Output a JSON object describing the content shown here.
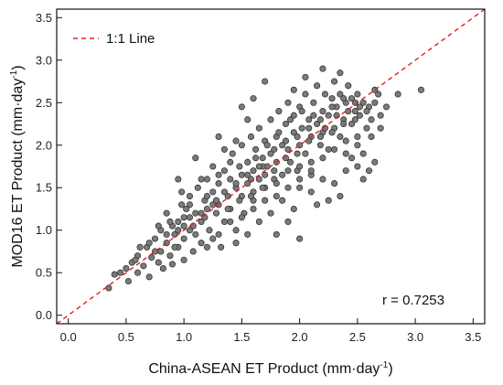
{
  "chart_data": {
    "type": "scatter",
    "xlabel": "China-ASEAN ET Product (mm·day",
    "xlabel_sup": "-1",
    "xlabel_end": ")",
    "ylabel": "MOD16 ET Product (mm·day",
    "ylabel_sup": "-1",
    "ylabel_end": ")",
    "xlim": [
      -0.1,
      3.6
    ],
    "ylim": [
      -0.1,
      3.6
    ],
    "xticks": [
      "0.0",
      "0.5",
      "1.0",
      "1.5",
      "2.0",
      "2.5",
      "3.0",
      "3.5"
    ],
    "yticks": [
      "0.0",
      "0.5",
      "1.0",
      "1.5",
      "2.0",
      "2.5",
      "3.0",
      "3.5"
    ],
    "xtick_values": [
      0,
      0.5,
      1,
      1.5,
      2,
      2.5,
      3,
      3.5
    ],
    "ytick_values": [
      0,
      0.5,
      1,
      1.5,
      2,
      2.5,
      3,
      3.5
    ],
    "legend": {
      "label": "1:1 Line",
      "placement": "top-left"
    },
    "reference_line": {
      "name": "1:1 Line",
      "color": "#e0201b",
      "style": "dashed"
    },
    "annotation": "r = 0.7253",
    "correlation_r": 0.7253,
    "point_color": "#7a7a7a",
    "point_edge": "#2a2a2a",
    "points": [
      [
        0.35,
        0.32
      ],
      [
        0.4,
        0.48
      ],
      [
        0.45,
        0.5
      ],
      [
        0.5,
        0.55
      ],
      [
        0.52,
        0.4
      ],
      [
        0.55,
        0.62
      ],
      [
        0.6,
        0.7
      ],
      [
        0.6,
        0.5
      ],
      [
        0.65,
        0.58
      ],
      [
        0.68,
        0.8
      ],
      [
        0.7,
        0.45
      ],
      [
        0.72,
        0.68
      ],
      [
        0.75,
        0.9
      ],
      [
        0.78,
        0.62
      ],
      [
        0.8,
        1.0
      ],
      [
        0.8,
        0.75
      ],
      [
        0.82,
        0.55
      ],
      [
        0.85,
        0.85
      ],
      [
        0.85,
        1.2
      ],
      [
        0.88,
        0.7
      ],
      [
        0.9,
        1.05
      ],
      [
        0.9,
        0.6
      ],
      [
        0.92,
        0.95
      ],
      [
        0.95,
        1.1
      ],
      [
        0.95,
        0.8
      ],
      [
        0.98,
        1.3
      ],
      [
        1.0,
        0.9
      ],
      [
        1.0,
        1.15
      ],
      [
        1.0,
        0.65
      ],
      [
        1.02,
        1.25
      ],
      [
        1.05,
        1.0
      ],
      [
        1.05,
        1.4
      ],
      [
        1.08,
        0.75
      ],
      [
        1.1,
        1.2
      ],
      [
        1.1,
        0.95
      ],
      [
        1.12,
        1.5
      ],
      [
        1.15,
        1.1
      ],
      [
        1.15,
        0.85
      ],
      [
        1.18,
        1.35
      ],
      [
        1.2,
        1.25
      ],
      [
        1.2,
        1.6
      ],
      [
        1.22,
        1.0
      ],
      [
        1.25,
        1.45
      ],
      [
        1.25,
        0.9
      ],
      [
        1.28,
        1.2
      ],
      [
        1.3,
        1.55
      ],
      [
        1.3,
        1.3
      ],
      [
        1.32,
        0.8
      ],
      [
        1.35,
        1.7
      ],
      [
        1.35,
        1.1
      ],
      [
        1.38,
        1.4
      ],
      [
        1.4,
        1.6
      ],
      [
        1.4,
        1.25
      ],
      [
        1.42,
        1.9
      ],
      [
        1.45,
        1.5
      ],
      [
        1.45,
        1.0
      ],
      [
        1.48,
        1.75
      ],
      [
        1.5,
        1.4
      ],
      [
        1.5,
        1.65
      ],
      [
        1.5,
        2.0
      ],
      [
        1.52,
        1.2
      ],
      [
        1.55,
        1.8
      ],
      [
        1.55,
        1.55
      ],
      [
        1.58,
        2.1
      ],
      [
        1.6,
        1.7
      ],
      [
        1.6,
        1.35
      ],
      [
        1.62,
        1.95
      ],
      [
        1.65,
        1.6
      ],
      [
        1.65,
        2.2
      ],
      [
        1.68,
        1.85
      ],
      [
        1.7,
        1.5
      ],
      [
        1.7,
        2.05
      ],
      [
        1.72,
        1.75
      ],
      [
        1.75,
        2.3
      ],
      [
        1.75,
        1.9
      ],
      [
        1.78,
        1.6
      ],
      [
        1.8,
        2.1
      ],
      [
        1.8,
        1.8
      ],
      [
        1.82,
        2.4
      ],
      [
        1.85,
        2.0
      ],
      [
        1.85,
        1.65
      ],
      [
        1.88,
        2.25
      ],
      [
        1.9,
        1.95
      ],
      [
        1.9,
        2.5
      ],
      [
        1.92,
        1.8
      ],
      [
        1.95,
        2.15
      ],
      [
        1.95,
        2.35
      ],
      [
        1.98,
        1.7
      ],
      [
        2.0,
        2.0
      ],
      [
        2.0,
        2.45
      ],
      [
        2.02,
        2.2
      ],
      [
        2.05,
        1.9
      ],
      [
        2.05,
        2.6
      ],
      [
        2.08,
        2.3
      ],
      [
        2.1,
        2.1
      ],
      [
        2.1,
        1.8
      ],
      [
        2.12,
        2.5
      ],
      [
        2.15,
        2.25
      ],
      [
        2.15,
        2.7
      ],
      [
        2.18,
        2.0
      ],
      [
        2.2,
        2.4
      ],
      [
        2.2,
        2.15
      ],
      [
        2.22,
        2.6
      ],
      [
        2.25,
        1.95
      ],
      [
        2.25,
        2.35
      ],
      [
        2.28,
        2.55
      ],
      [
        2.3,
        2.2
      ],
      [
        2.3,
        2.75
      ],
      [
        2.32,
        2.45
      ],
      [
        2.35,
        2.1
      ],
      [
        2.35,
        2.6
      ],
      [
        2.38,
        2.3
      ],
      [
        2.4,
        2.5
      ],
      [
        2.4,
        1.9
      ],
      [
        2.42,
        2.7
      ],
      [
        2.45,
        2.25
      ],
      [
        2.45,
        2.55
      ],
      [
        2.48,
        2.4
      ],
      [
        2.5,
        2.6
      ],
      [
        2.5,
        2.1
      ],
      [
        2.52,
        2.35
      ],
      [
        2.55,
        2.5
      ],
      [
        2.58,
        2.2
      ],
      [
        2.6,
        2.45
      ],
      [
        2.62,
        2.3
      ],
      [
        2.65,
        2.5
      ],
      [
        2.7,
        2.35
      ],
      [
        2.75,
        2.45
      ],
      [
        2.85,
        2.6
      ],
      [
        3.05,
        2.65
      ],
      [
        2.2,
        2.9
      ],
      [
        2.35,
        2.85
      ],
      [
        1.7,
        2.75
      ],
      [
        1.95,
        2.65
      ],
      [
        2.05,
        2.8
      ],
      [
        1.5,
        2.45
      ],
      [
        1.3,
        2.1
      ],
      [
        1.1,
        1.85
      ],
      [
        0.95,
        1.6
      ],
      [
        1.6,
        2.55
      ],
      [
        2.0,
        1.5
      ],
      [
        2.1,
        1.45
      ],
      [
        2.2,
        1.6
      ],
      [
        2.3,
        1.55
      ],
      [
        2.4,
        1.7
      ],
      [
        2.5,
        1.75
      ],
      [
        2.15,
        1.3
      ],
      [
        2.35,
        1.4
      ],
      [
        2.55,
        1.6
      ],
      [
        2.65,
        1.8
      ],
      [
        1.85,
        1.35
      ],
      [
        1.75,
        1.2
      ],
      [
        1.95,
        1.25
      ],
      [
        1.65,
        1.1
      ],
      [
        1.55,
        0.95
      ],
      [
        1.45,
        0.85
      ],
      [
        1.9,
        1.1
      ],
      [
        2.25,
        1.35
      ],
      [
        1.8,
        0.95
      ],
      [
        2.0,
        0.9
      ],
      [
        1.4,
        1.8
      ],
      [
        1.3,
        1.65
      ],
      [
        1.2,
        1.4
      ],
      [
        1.15,
        1.6
      ],
      [
        1.05,
        1.3
      ],
      [
        0.98,
        1.45
      ],
      [
        1.25,
        1.75
      ],
      [
        1.35,
        1.95
      ],
      [
        1.45,
        2.05
      ],
      [
        1.55,
        2.3
      ],
      [
        1.6,
        1.45
      ],
      [
        1.7,
        1.65
      ],
      [
        1.8,
        1.55
      ],
      [
        1.9,
        1.7
      ],
      [
        2.0,
        1.75
      ],
      [
        2.1,
        1.65
      ],
      [
        2.2,
        1.85
      ],
      [
        2.3,
        1.95
      ],
      [
        2.4,
        2.05
      ],
      [
        2.5,
        2.0
      ],
      [
        1.62,
        1.85
      ],
      [
        1.72,
        2.0
      ],
      [
        1.82,
        2.15
      ],
      [
        1.92,
        2.3
      ],
      [
        2.02,
        2.4
      ],
      [
        2.12,
        2.35
      ],
      [
        2.22,
        2.2
      ],
      [
        2.32,
        2.35
      ],
      [
        2.42,
        2.4
      ],
      [
        2.52,
        2.45
      ],
      [
        1.58,
        1.6
      ],
      [
        1.68,
        1.75
      ],
      [
        1.78,
        1.95
      ],
      [
        1.88,
        2.05
      ],
      [
        1.98,
        2.1
      ],
      [
        2.08,
        2.2
      ],
      [
        2.18,
        2.3
      ],
      [
        2.28,
        2.45
      ],
      [
        2.38,
        2.55
      ],
      [
        2.48,
        2.5
      ],
      [
        0.75,
        0.75
      ],
      [
        0.85,
        0.95
      ],
      [
        0.95,
        1.0
      ],
      [
        1.05,
        1.15
      ],
      [
        1.15,
        1.2
      ],
      [
        1.25,
        1.3
      ],
      [
        1.35,
        1.45
      ],
      [
        1.45,
        1.55
      ],
      [
        1.55,
        1.65
      ],
      [
        1.65,
        1.75
      ],
      [
        0.58,
        0.65
      ],
      [
        0.62,
        0.8
      ],
      [
        0.7,
        0.85
      ],
      [
        0.78,
        1.05
      ],
      [
        0.88,
        1.1
      ],
      [
        0.92,
        0.8
      ],
      [
        1.0,
        1.05
      ],
      [
        1.08,
        1.05
      ],
      [
        1.18,
        1.15
      ],
      [
        1.28,
        1.35
      ],
      [
        1.38,
        1.25
      ],
      [
        1.48,
        1.35
      ],
      [
        1.58,
        1.4
      ],
      [
        1.68,
        1.5
      ],
      [
        1.78,
        1.7
      ],
      [
        1.88,
        1.85
      ],
      [
        1.98,
        1.9
      ],
      [
        2.08,
        2.05
      ],
      [
        2.18,
        2.1
      ],
      [
        2.28,
        2.15
      ],
      [
        2.38,
        2.25
      ],
      [
        2.48,
        2.3
      ],
      [
        2.58,
        2.4
      ],
      [
        2.68,
        2.6
      ],
      [
        2.62,
        2.1
      ],
      [
        2.7,
        2.2
      ],
      [
        2.55,
        1.9
      ],
      [
        2.45,
        1.85
      ],
      [
        2.6,
        1.7
      ],
      [
        2.65,
        2.65
      ],
      [
        1.2,
        0.8
      ],
      [
        1.3,
        0.95
      ],
      [
        1.4,
        1.1
      ],
      [
        1.5,
        1.15
      ],
      [
        1.6,
        1.25
      ],
      [
        1.7,
        1.35
      ],
      [
        1.8,
        1.4
      ],
      [
        1.9,
        1.5
      ],
      [
        2.0,
        1.6
      ],
      [
        2.1,
        1.7
      ]
    ]
  }
}
